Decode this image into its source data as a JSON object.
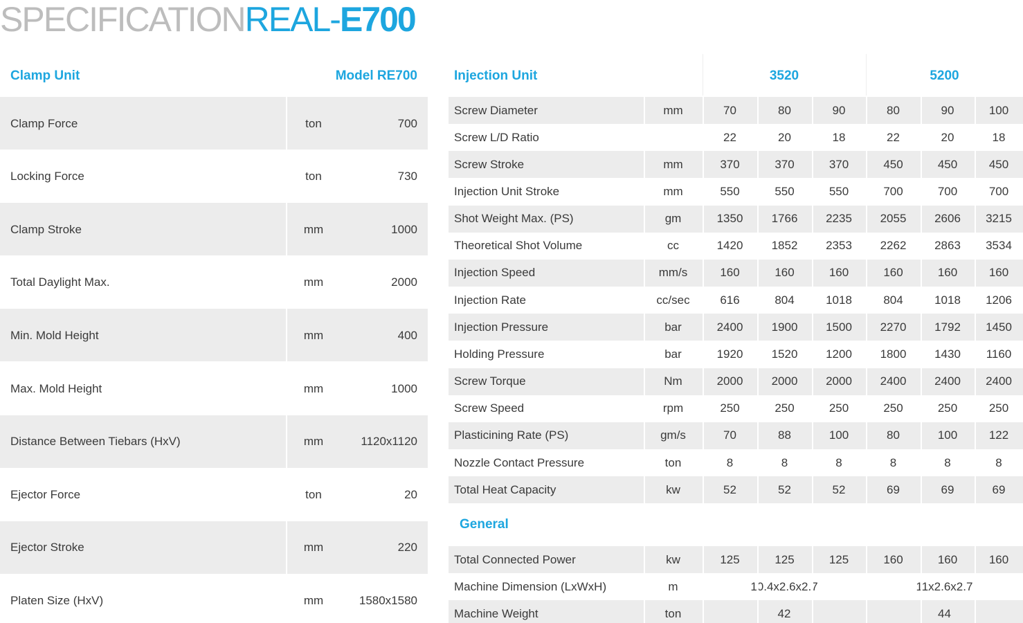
{
  "title": {
    "part1": "SPECIFICATION",
    "part2": "REAL-",
    "part3": "E700"
  },
  "clamp": {
    "header": [
      "Clamp Unit",
      "Model RE700"
    ],
    "rows": [
      [
        "Clamp Force",
        "ton",
        700
      ],
      [
        "Locking Force",
        "ton",
        730
      ],
      [
        "Clamp Stroke",
        "mm",
        1000
      ],
      [
        "Total Daylight Max.",
        "mm",
        2000
      ],
      [
        "Min. Mold Height",
        "mm",
        400
      ],
      [
        "Max. Mold Height",
        "mm",
        1000
      ],
      [
        "Distance Between Tiebars (HxV)",
        "mm",
        "1120x1120"
      ],
      [
        "Ejector Force",
        "ton",
        20
      ],
      [
        "Ejector Stroke",
        "mm",
        220
      ],
      [
        "Platen Size (HxV)",
        "mm",
        "1580x1580"
      ]
    ]
  },
  "injection": {
    "header": [
      "Injection Unit",
      "3520",
      "5200"
    ],
    "rows": [
      {
        "label": "Screw Diameter",
        "unit": "mm",
        "values": [
          70,
          80,
          90,
          80,
          90,
          100
        ]
      },
      {
        "label": "Screw L/D Ratio",
        "unit": "",
        "values": [
          22,
          20,
          18,
          22,
          20,
          18
        ]
      },
      {
        "label": "Screw Stroke",
        "unit": "mm",
        "values": [
          370,
          370,
          370,
          450,
          450,
          450
        ]
      },
      {
        "label": "Injection Unit Stroke",
        "unit": "mm",
        "values": [
          550,
          550,
          550,
          700,
          700,
          700
        ]
      },
      {
        "label": "Shot Weight Max. (PS)",
        "unit": "gm",
        "values": [
          1350,
          1766,
          2235,
          2055,
          2606,
          3215
        ]
      },
      {
        "label": "Theoretical Shot Volume",
        "unit": "cc",
        "values": [
          1420,
          1852,
          2353,
          2262,
          2863,
          3534
        ]
      },
      {
        "label": "Injection Speed",
        "unit": "mm/s",
        "values": [
          160,
          160,
          160,
          160,
          160,
          160
        ]
      },
      {
        "label": "Injection Rate",
        "unit": "cc/sec",
        "values": [
          616,
          804,
          1018,
          804,
          1018,
          1206
        ]
      },
      {
        "label": "Injection Pressure",
        "unit": "bar",
        "values": [
          2400,
          1900,
          1500,
          2270,
          1792,
          1450
        ]
      },
      {
        "label": "Holding Pressure",
        "unit": "bar",
        "values": [
          1920,
          1520,
          1200,
          1800,
          1430,
          1160
        ]
      },
      {
        "label": "Screw Torque",
        "unit": "Nm",
        "values": [
          2000,
          2000,
          2000,
          2400,
          2400,
          2400
        ]
      },
      {
        "label": "Screw Speed",
        "unit": "rpm",
        "values": [
          250,
          250,
          250,
          250,
          250,
          250
        ]
      },
      {
        "label": "Plasticining Rate (PS)",
        "unit": "gm/s",
        "values": [
          70,
          88,
          100,
          80,
          100,
          122
        ]
      },
      {
        "label": "Nozzle Contact Pressure",
        "unit": "ton",
        "values": [
          8,
          8,
          8,
          8,
          8,
          8
        ]
      },
      {
        "label": "Total Heat Capacity",
        "unit": "kw",
        "values": [
          52,
          52,
          52,
          69,
          69,
          69
        ]
      }
    ]
  },
  "general": {
    "header": "General",
    "rows": [
      {
        "label": "Total Connected Power",
        "unit": "kw",
        "values": [
          125,
          125,
          125,
          160,
          160,
          160
        ]
      },
      {
        "label": "Machine Dimension (LxWxH)",
        "unit": "m",
        "values": [
          "10.4x2.6x2.7",
          "11x2.6x2.7"
        ]
      },
      {
        "label": "Machine Weight",
        "unit": "ton",
        "values": [
          42,
          44
        ]
      }
    ]
  }
}
